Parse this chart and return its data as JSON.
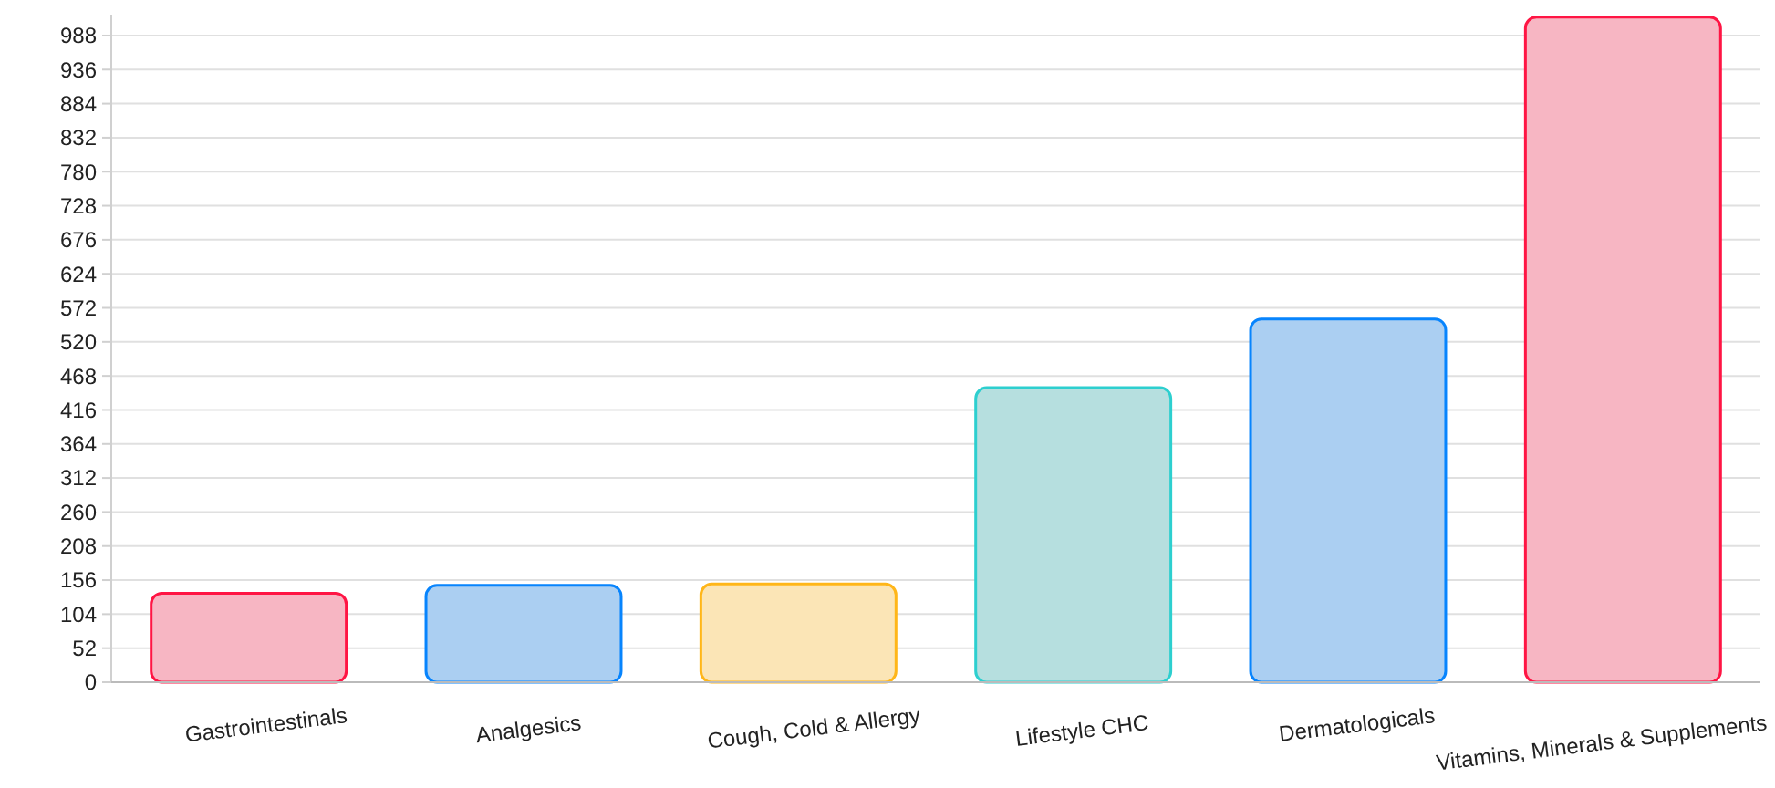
{
  "chart_data": {
    "type": "bar",
    "categories": [
      "Gastrointestinals",
      "Analgesics",
      "Cough, Cold & Allergy",
      "Lifestyle CHC",
      "Dermatologicals",
      "Vitamins, Minerals & Supplements"
    ],
    "values": [
      136,
      148,
      150,
      450,
      555,
      1016
    ],
    "colors": [
      "#f7b6c3",
      "#abcff2",
      "#fbe5b6",
      "#b6dfdf",
      "#abcff2",
      "#f7b6c3"
    ],
    "ylim": [
      0,
      1020
    ],
    "yticks": [
      0,
      52,
      104,
      156,
      208,
      260,
      312,
      364,
      416,
      468,
      520,
      572,
      624,
      676,
      728,
      780,
      832,
      884,
      936,
      988
    ],
    "grid": "y"
  }
}
